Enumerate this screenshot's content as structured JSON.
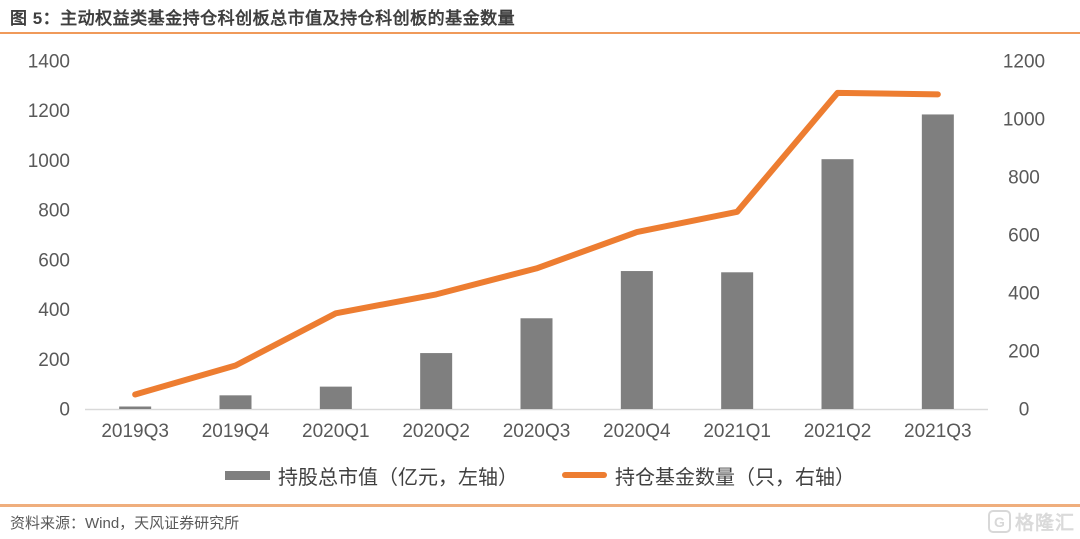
{
  "header": {
    "title": "图 5：主动权益类基金持仓科创板总市值及持仓科创板的基金数量"
  },
  "chart_data": {
    "type": "bar",
    "title": "主动权益类基金持仓科创板总市值及持仓科创板的基金数量",
    "categories": [
      "2019Q3",
      "2019Q4",
      "2020Q1",
      "2020Q2",
      "2020Q3",
      "2020Q4",
      "2021Q1",
      "2021Q2",
      "2021Q3"
    ],
    "series": [
      {
        "name": "持股总市值（亿元，左轴）",
        "kind": "bar",
        "axis": "left",
        "color": "#7f7f7f",
        "values": [
          10,
          55,
          90,
          225,
          365,
          555,
          550,
          1005,
          1185
        ]
      },
      {
        "name": "持仓基金数量（只，右轴）",
        "kind": "line",
        "axis": "right",
        "color": "#ed7d31",
        "values": [
          50,
          150,
          330,
          395,
          485,
          610,
          680,
          1090,
          1085
        ]
      }
    ],
    "left_axis": {
      "min": 0,
      "max": 1400,
      "step": 200
    },
    "right_axis": {
      "min": 0,
      "max": 1200,
      "step": 200
    },
    "grid": false,
    "legend_position": "bottom",
    "axis_text_color": "#595959",
    "axis_line_color": "#d9d9d9"
  },
  "footer": {
    "source": "资料来源：Wind，天风证券研究所",
    "logo_letter": "G",
    "logo_text": "格隆汇"
  }
}
